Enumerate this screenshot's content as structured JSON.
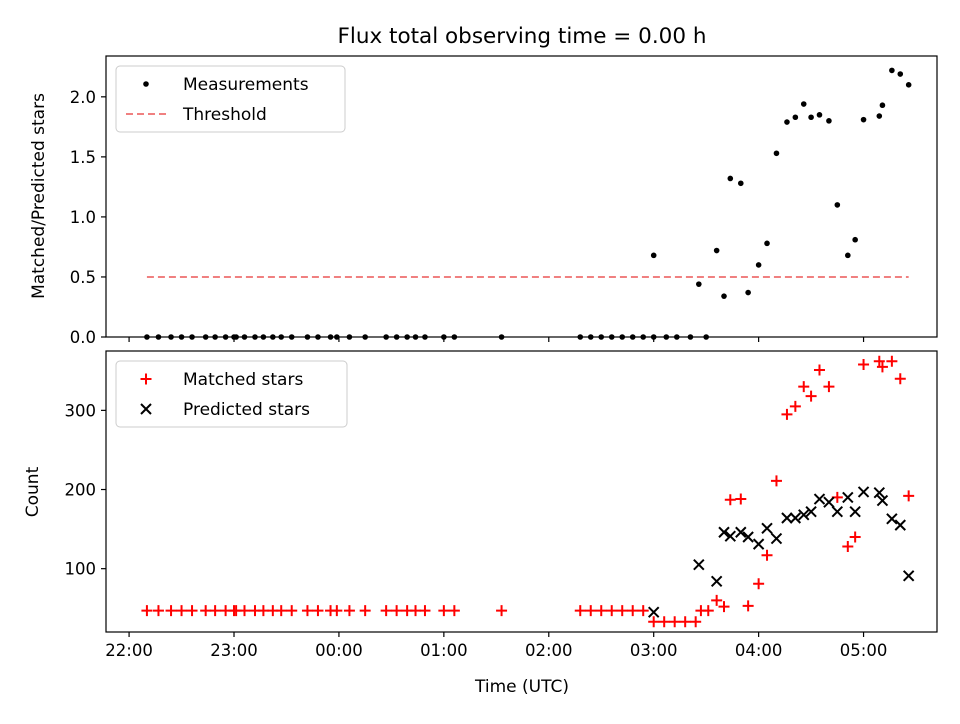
{
  "chart_data": {
    "type": "scatter",
    "title": "Flux total observing time = 0.00 h",
    "x_unit": "hours since 22:00 UTC",
    "xlim": [
      -0.22,
      7.7
    ],
    "xlabel": "Time (UTC)",
    "x_ticks": [
      {
        "value": 0,
        "label": "22:00"
      },
      {
        "value": 1,
        "label": "23:00"
      },
      {
        "value": 2,
        "label": "00:00"
      },
      {
        "value": 3,
        "label": "01:00"
      },
      {
        "value": 4,
        "label": "02:00"
      },
      {
        "value": 5,
        "label": "03:00"
      },
      {
        "value": 6,
        "label": "04:00"
      },
      {
        "value": 7,
        "label": "05:00"
      }
    ],
    "panels": [
      {
        "id": "ratio",
        "ylabel": "Matched/Predicted stars",
        "ylim": [
          0.0,
          2.34
        ],
        "y_ticks": [
          {
            "value": 0.0,
            "label": "0.0"
          },
          {
            "value": 0.5,
            "label": "0.5"
          },
          {
            "value": 1.0,
            "label": "1.0"
          },
          {
            "value": 1.5,
            "label": "1.5"
          },
          {
            "value": 2.0,
            "label": "2.0"
          }
        ],
        "legend_position": "top-left",
        "series": [
          {
            "name": "Measurements",
            "marker": "dot",
            "color": "#000000",
            "points": [
              [
                0.17,
                0
              ],
              [
                0.28,
                0
              ],
              [
                0.4,
                0
              ],
              [
                0.5,
                0
              ],
              [
                0.6,
                0
              ],
              [
                0.73,
                0
              ],
              [
                0.82,
                0
              ],
              [
                0.92,
                0
              ],
              [
                1.0,
                0
              ],
              [
                1.02,
                0
              ],
              [
                1.1,
                0
              ],
              [
                1.2,
                0
              ],
              [
                1.28,
                0
              ],
              [
                1.37,
                0
              ],
              [
                1.45,
                0
              ],
              [
                1.55,
                0
              ],
              [
                1.7,
                0
              ],
              [
                1.8,
                0
              ],
              [
                1.92,
                0
              ],
              [
                1.98,
                0
              ],
              [
                2.1,
                0
              ],
              [
                2.25,
                0
              ],
              [
                2.45,
                0
              ],
              [
                2.55,
                0
              ],
              [
                2.65,
                0
              ],
              [
                2.73,
                0
              ],
              [
                2.82,
                0
              ],
              [
                3.0,
                0
              ],
              [
                3.1,
                0
              ],
              [
                3.55,
                0
              ],
              [
                4.3,
                0
              ],
              [
                4.4,
                0
              ],
              [
                4.5,
                0
              ],
              [
                4.6,
                0
              ],
              [
                4.7,
                0
              ],
              [
                4.8,
                0
              ],
              [
                4.9,
                0
              ],
              [
                5.0,
                0
              ],
              [
                5.12,
                0
              ],
              [
                5.22,
                0
              ],
              [
                5.35,
                0
              ],
              [
                5.5,
                0
              ],
              [
                5.0,
                0.68
              ],
              [
                5.43,
                0.44
              ],
              [
                5.6,
                0.72
              ],
              [
                5.67,
                0.34
              ],
              [
                5.73,
                1.32
              ],
              [
                5.83,
                1.28
              ],
              [
                5.9,
                0.37
              ],
              [
                6.0,
                0.6
              ],
              [
                6.08,
                0.78
              ],
              [
                6.17,
                1.53
              ],
              [
                6.27,
                1.79
              ],
              [
                6.35,
                1.83
              ],
              [
                6.43,
                1.94
              ],
              [
                6.5,
                1.83
              ],
              [
                6.58,
                1.85
              ],
              [
                6.67,
                1.8
              ],
              [
                6.75,
                1.1
              ],
              [
                6.85,
                0.68
              ],
              [
                6.92,
                0.81
              ],
              [
                7.0,
                1.81
              ],
              [
                7.15,
                1.84
              ],
              [
                7.18,
                1.93
              ],
              [
                7.27,
                2.22
              ],
              [
                7.35,
                2.19
              ],
              [
                7.43,
                2.1
              ]
            ]
          },
          {
            "name": "Threshold",
            "marker": "dashed-line",
            "color": "#f08080",
            "points": [
              [
                0.17,
                0.5
              ],
              [
                7.43,
                0.5
              ]
            ]
          }
        ]
      },
      {
        "id": "count",
        "ylabel": "Count",
        "ylim": [
          20,
          375
        ],
        "y_ticks": [
          {
            "value": 100,
            "label": "100"
          },
          {
            "value": 200,
            "label": "200"
          },
          {
            "value": 300,
            "label": "300"
          }
        ],
        "legend_position": "top-left",
        "series": [
          {
            "name": "Matched stars",
            "marker": "plus",
            "color": "#ff0000",
            "points": [
              [
                0.17,
                47
              ],
              [
                0.28,
                47
              ],
              [
                0.4,
                47
              ],
              [
                0.5,
                47
              ],
              [
                0.6,
                47
              ],
              [
                0.73,
                47
              ],
              [
                0.82,
                47
              ],
              [
                0.92,
                47
              ],
              [
                1.0,
                47
              ],
              [
                1.02,
                47
              ],
              [
                1.1,
                47
              ],
              [
                1.2,
                47
              ],
              [
                1.28,
                47
              ],
              [
                1.37,
                47
              ],
              [
                1.45,
                47
              ],
              [
                1.55,
                47
              ],
              [
                1.7,
                47
              ],
              [
                1.8,
                47
              ],
              [
                1.92,
                47
              ],
              [
                1.98,
                47
              ],
              [
                2.1,
                47
              ],
              [
                2.25,
                47
              ],
              [
                2.45,
                47
              ],
              [
                2.55,
                47
              ],
              [
                2.65,
                47
              ],
              [
                2.73,
                47
              ],
              [
                2.82,
                47
              ],
              [
                3.0,
                47
              ],
              [
                3.1,
                47
              ],
              [
                3.55,
                47
              ],
              [
                4.3,
                47
              ],
              [
                4.4,
                47
              ],
              [
                4.5,
                47
              ],
              [
                4.6,
                47
              ],
              [
                4.7,
                47
              ],
              [
                4.8,
                47
              ],
              [
                4.9,
                47
              ],
              [
                5.0,
                33
              ],
              [
                5.1,
                33
              ],
              [
                5.2,
                33
              ],
              [
                5.3,
                33
              ],
              [
                5.4,
                33
              ],
              [
                5.45,
                47
              ],
              [
                5.52,
                47
              ],
              [
                5.6,
                60
              ],
              [
                5.67,
                52
              ],
              [
                5.73,
                187
              ],
              [
                5.83,
                188
              ],
              [
                5.9,
                53
              ],
              [
                6.0,
                81
              ],
              [
                6.08,
                117
              ],
              [
                6.17,
                211
              ],
              [
                6.27,
                295
              ],
              [
                6.35,
                305
              ],
              [
                6.43,
                330
              ],
              [
                6.5,
                318
              ],
              [
                6.58,
                351
              ],
              [
                6.67,
                330
              ],
              [
                6.75,
                190
              ],
              [
                6.85,
                128
              ],
              [
                6.92,
                140
              ],
              [
                7.0,
                358
              ],
              [
                7.15,
                362
              ],
              [
                7.18,
                355
              ],
              [
                7.27,
                362
              ],
              [
                7.35,
                340
              ],
              [
                7.43,
                192
              ]
            ]
          },
          {
            "name": "Predicted stars",
            "marker": "x",
            "color": "#000000",
            "points": [
              [
                5.0,
                45
              ],
              [
                5.43,
                105
              ],
              [
                5.6,
                84
              ],
              [
                5.67,
                146
              ],
              [
                5.73,
                141
              ],
              [
                5.83,
                146
              ],
              [
                5.9,
                140
              ],
              [
                6.0,
                131
              ],
              [
                6.08,
                151
              ],
              [
                6.17,
                138
              ],
              [
                6.27,
                164
              ],
              [
                6.35,
                164
              ],
              [
                6.43,
                168
              ],
              [
                6.5,
                172
              ],
              [
                6.58,
                188
              ],
              [
                6.67,
                184
              ],
              [
                6.75,
                172
              ],
              [
                6.85,
                190
              ],
              [
                6.92,
                172
              ],
              [
                7.0,
                197
              ],
              [
                7.15,
                196
              ],
              [
                7.18,
                186
              ],
              [
                7.27,
                163
              ],
              [
                7.35,
                155
              ],
              [
                7.43,
                91
              ]
            ]
          }
        ]
      }
    ]
  }
}
